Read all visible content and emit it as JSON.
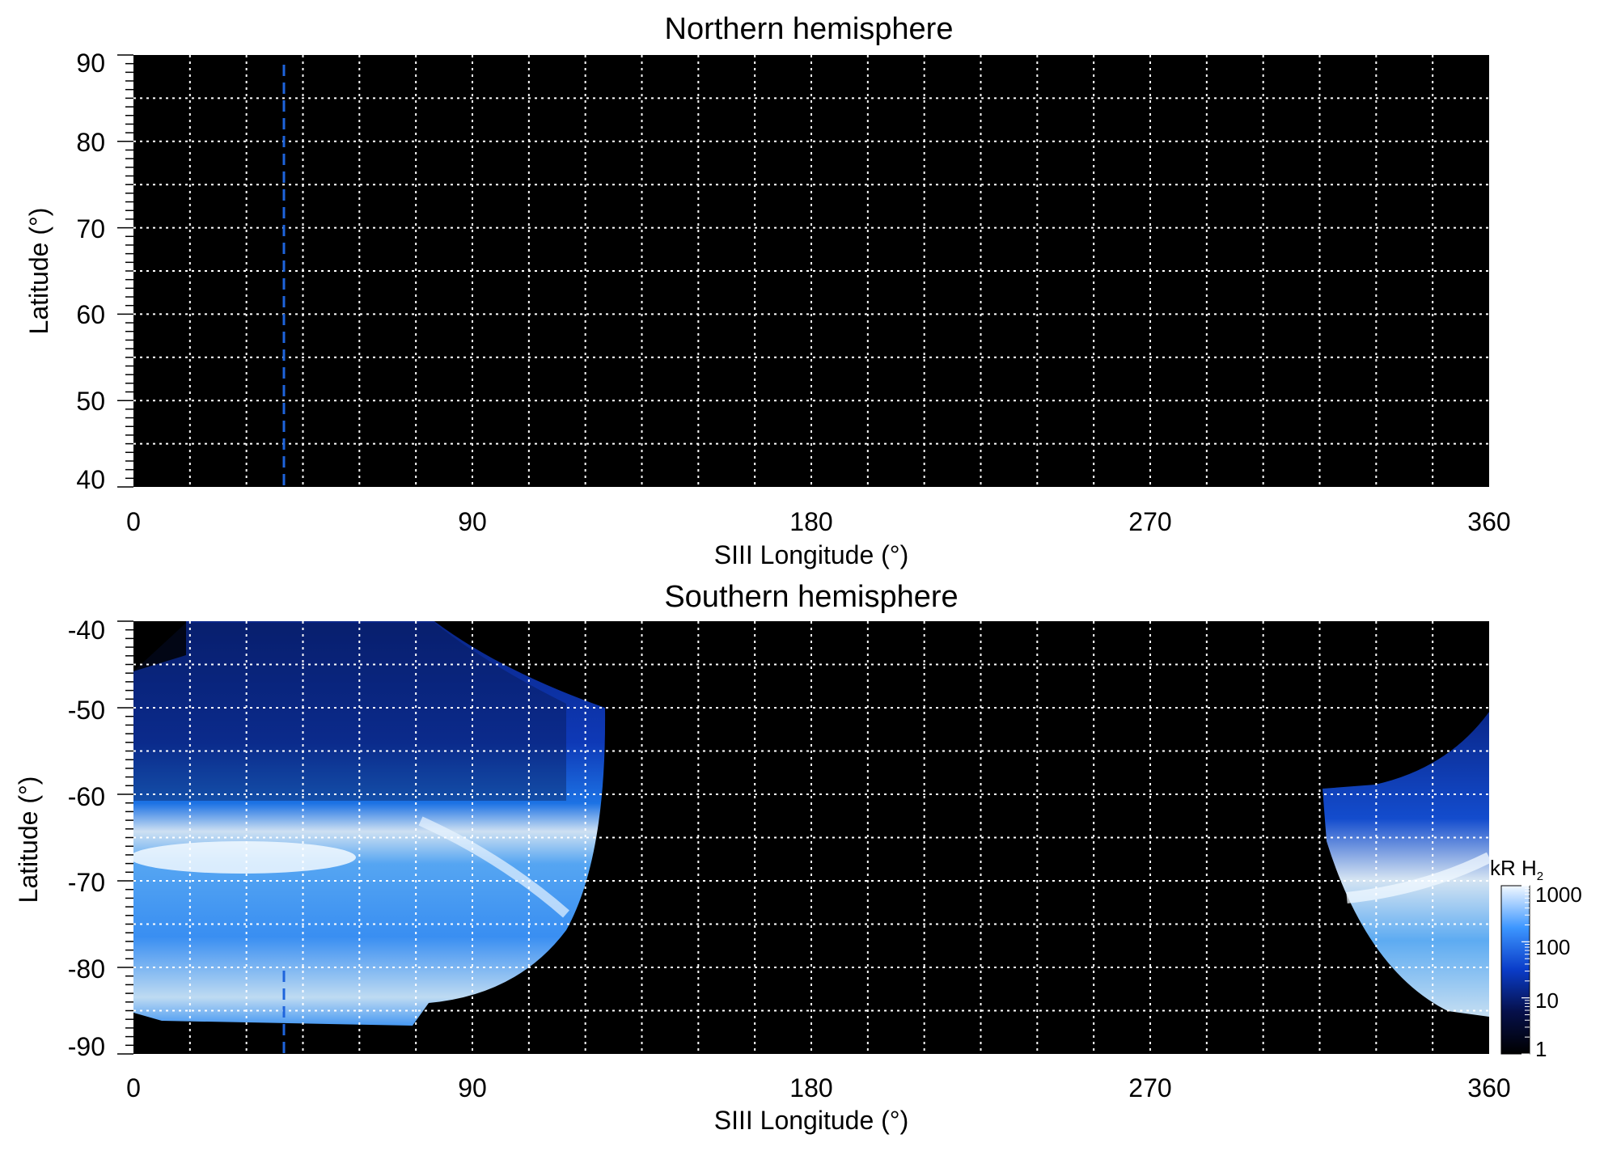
{
  "panels": [
    {
      "title": "Northern hemisphere",
      "xlabel": "SIII Longitude (°)",
      "ylabel": "Latitude (°)",
      "xticks": [
        "0",
        "90",
        "180",
        "270",
        "360"
      ],
      "yticks": [
        "90",
        "80",
        "70",
        "60",
        "50",
        "40"
      ]
    },
    {
      "title": "Southern hemisphere",
      "xlabel": "SIII Longitude (°)",
      "ylabel": "Latitude (°)",
      "xticks": [
        "0",
        "90",
        "180",
        "270",
        "360"
      ],
      "yticks": [
        "-40",
        "-50",
        "-60",
        "-70",
        "-80",
        "-90"
      ]
    }
  ],
  "colorbar": {
    "label": "kR H",
    "label_sub": "2",
    "ticks": [
      "1000",
      "100",
      "10",
      "1"
    ]
  },
  "colors": {
    "background": "#000000",
    "grid": "#ffffff",
    "marker_line": "#1e64dc",
    "emission_low": "#0a1e78",
    "emission_mid": "#1e78f0",
    "emission_high": "#e6f5ff"
  },
  "chart_data": [
    {
      "type": "heatmap",
      "title": "Northern hemisphere",
      "xlabel": "SIII Longitude (°)",
      "ylabel": "Latitude (°)",
      "xlim": [
        0,
        360
      ],
      "ylim": [
        40,
        90
      ],
      "grid": true,
      "grid_x_step": 15,
      "grid_y_step": 5,
      "marker_longitude": 40,
      "emission": "none"
    },
    {
      "type": "heatmap",
      "title": "Southern hemisphere",
      "xlabel": "SIII Longitude (°)",
      "ylabel": "Latitude (°)",
      "xlim": [
        0,
        360
      ],
      "ylim": [
        -90,
        -40
      ],
      "grid": true,
      "grid_x_step": 15,
      "grid_y_step": 5,
      "marker_longitude": 40,
      "colorbar_range_kR": [
        1,
        1000
      ],
      "colorbar_scale": "log",
      "emission_regions": [
        {
          "lon_range": [
            0,
            125
          ],
          "lat_range": [
            -87,
            -40
          ],
          "main_oval_lat": [
            -72,
            -66
          ],
          "brightest_kR": 1000
        },
        {
          "lon_range": [
            317,
            360
          ],
          "lat_range": [
            -86,
            -52
          ],
          "main_oval_lat": [
            -76,
            -68
          ],
          "brightest_kR": 1000
        }
      ]
    }
  ]
}
